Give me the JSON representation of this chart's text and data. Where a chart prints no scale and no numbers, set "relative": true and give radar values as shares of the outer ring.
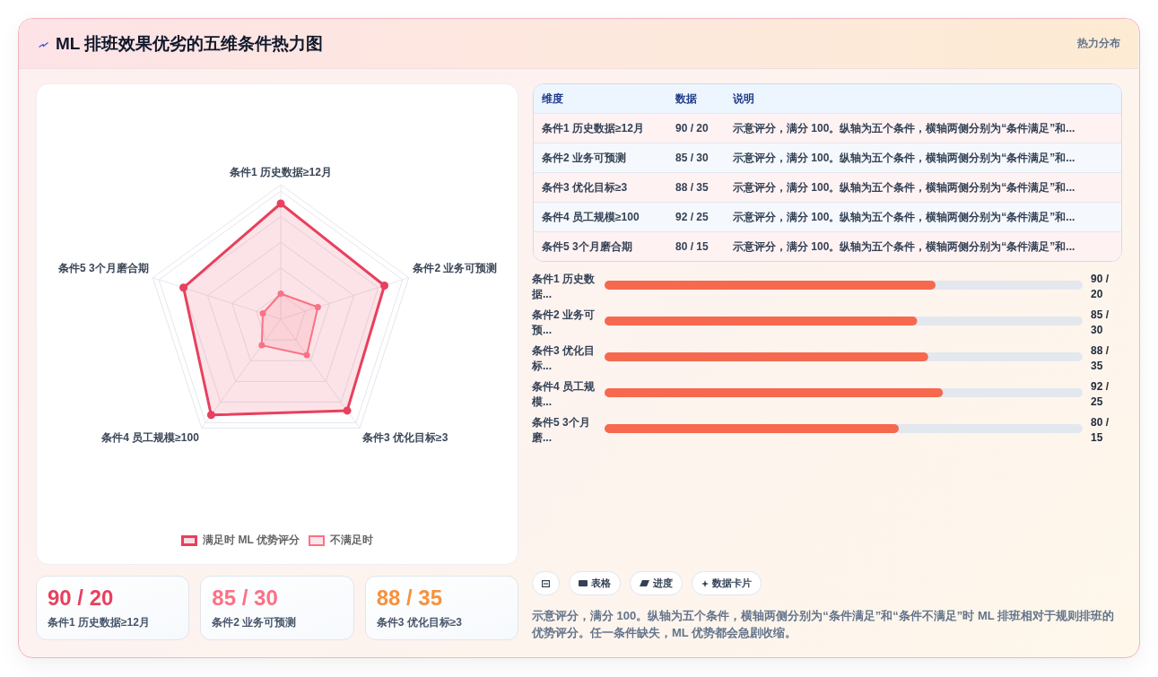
{
  "chart_data": [
    {
      "type": "other",
      "title": "ML 排班效果优劣的五维条件热力图",
      "annotations": [
        "热力分布"
      ]
    },
    {
      "type": "radar",
      "categories": [
        "条件1 历史数据≥12月",
        "条件2 业务可预测",
        "条件3 优化目标≥3",
        "条件4 员工规模≥100",
        "条件5 3个月磨合期"
      ],
      "series": [
        {
          "name": "满足时 ML 优势评分",
          "color": "#e8405e",
          "values": [
            0.86,
            0.81,
            0.84,
            0.88,
            0.76
          ]
        },
        {
          "name": "不满足时",
          "color": "#fb7185",
          "values": [
            0.19,
            0.29,
            0.33,
            0.24,
            0.14
          ]
        }
      ],
      "relative": true,
      "grid": true,
      "legend": "bottom",
      "marker": "circle"
    },
    {
      "type": "other",
      "categories": [
        "维度",
        "数据",
        "说明"
      ],
      "cell_labels": [
        [
          "条件1 历史数据≥12月",
          "90 / 20",
          "示意评分，满分 100。纵轴为五个条件，横轴两侧分别为“条件满足”和..."
        ],
        [
          "条件2 业务可预测",
          "85 / 30",
          "示意评分，满分 100。纵轴为五个条件，横轴两侧分别为“条件满足”和..."
        ],
        [
          "条件3 优化目标≥3",
          "88 / 35",
          "示意评分，满分 100。纵轴为五个条件，横轴两侧分别为“条件满足”和..."
        ],
        [
          "条件4 员工规模≥100",
          "92 / 25",
          "示意评分，满分 100。纵轴为五个条件，横轴两侧分别为“条件满足”和..."
        ],
        [
          "条件5 3个月磨合期",
          "80 / 15",
          "示意评分，满分 100。纵轴为五个条件，横轴两侧分别为“条件满足”和..."
        ]
      ]
    },
    {
      "type": "bar",
      "orientation": "horizontal",
      "categories": [
        "条件1 历史数据...",
        "条件2 业务可预...",
        "条件3 优化目标...",
        "条件4 员工规模...",
        "条件5 3个月磨..."
      ],
      "values": [
        90,
        85,
        88,
        92,
        80
      ],
      "color": "#f6694f",
      "xlim": [
        0,
        130
      ],
      "value_labels": [
        "90 / 20",
        "85 / 30",
        "88 / 35",
        "92 / 25",
        "80 / 15"
      ],
      "tick_labels": "y"
    },
    {
      "type": "other",
      "categories": [
        "条件1 历史数据≥12月",
        "条件2 业务可预测",
        "条件3 优化目标≥3"
      ],
      "value_labels": [
        "90 / 20",
        "85 / 30",
        "88 / 35"
      ],
      "colors": [
        "#e8405e",
        "#fb7185",
        "#f7913d"
      ]
    },
    {
      "type": "other",
      "annotations": [
        "表格",
        "进度",
        "数据卡片",
        "示意评分，满分 100。纵轴为五个条件，横轴两侧分别为“条件满足”和“条件不满足”时 ML 排班相对于规则排班的优势评分。任一条件缺失，ML 优势都会急剧收缩。"
      ]
    }
  ]
}
